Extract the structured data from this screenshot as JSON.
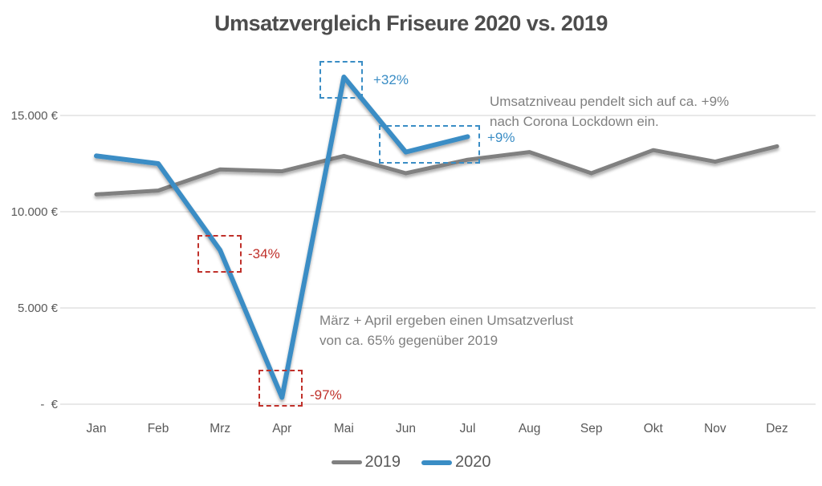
{
  "chart_data": {
    "type": "line",
    "title": "Umsatzvergleich Friseure 2020 vs. 2019",
    "xlabel": "",
    "ylabel": "",
    "categories": [
      "Jan",
      "Feb",
      "Mrz",
      "Apr",
      "Mai",
      "Jun",
      "Jul",
      "Aug",
      "Sep",
      "Okt",
      "Nov",
      "Dez"
    ],
    "series": [
      {
        "name": "2019",
        "color": "#808080",
        "values": [
          10900,
          11100,
          12200,
          12100,
          12900,
          12000,
          12700,
          13100,
          12000,
          13200,
          12600,
          13400
        ]
      },
      {
        "name": "2020",
        "color": "#3a8dc5",
        "values": [
          12900,
          12500,
          8000,
          350,
          17000,
          13100,
          13900
        ]
      }
    ],
    "ylim": [
      0,
      17500
    ],
    "ytick_values": [
      0,
      5000,
      10000,
      15000
    ],
    "ytick_labels": [
      "-  €",
      "5.000 €",
      "10.000 €",
      "15.000 €"
    ],
    "grid": true,
    "legend_position": "bottom",
    "annotations": [
      {
        "label": "-34%",
        "color": "#c0312b",
        "series": "2020",
        "months": [
          "Mrz"
        ]
      },
      {
        "label": "-97%",
        "color": "#c0312b",
        "series": "2020",
        "months": [
          "Apr"
        ]
      },
      {
        "label": "+32%",
        "color": "#3a8dc5",
        "series": "2020",
        "months": [
          "Mai"
        ]
      },
      {
        "label": "+9%",
        "color": "#3a8dc5",
        "series": "2020",
        "months": [
          "Jun",
          "Jul"
        ]
      }
    ],
    "notes": [
      {
        "lines": [
          "Umsatzniveau pendelt sich auf ca. +9%",
          "nach Corona Lockdown ein."
        ]
      },
      {
        "lines": [
          "März + April ergeben einen Umsatzverlust",
          "von ca. 65% gegenüber 2019"
        ]
      }
    ]
  },
  "legend": {
    "items": [
      {
        "label": "2019",
        "color": "#808080"
      },
      {
        "label": "2020",
        "color": "#3a8dc5"
      }
    ]
  }
}
